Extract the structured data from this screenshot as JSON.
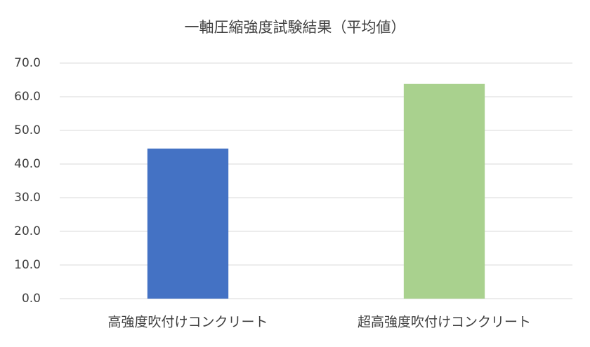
{
  "chart_data": {
    "type": "bar",
    "title": "一軸圧縮強度試験結果（平均値）",
    "categories": [
      "高強度吹付けコンクリート",
      "超高強度吹付けコンクリート"
    ],
    "values": [
      44.6,
      63.8
    ],
    "colors": [
      "#4472c4",
      "#a9d18e"
    ],
    "ylim": [
      0,
      70
    ],
    "yticks": [
      {
        "value": 0,
        "label": "0.0"
      },
      {
        "value": 10,
        "label": "10.0"
      },
      {
        "value": 20,
        "label": "20.0"
      },
      {
        "value": 30,
        "label": "30.0"
      },
      {
        "value": 40,
        "label": "40.0"
      },
      {
        "value": 50,
        "label": "50.0"
      },
      {
        "value": 60,
        "label": "60.0"
      },
      {
        "value": 70,
        "label": "70.0"
      }
    ],
    "grid": true
  }
}
